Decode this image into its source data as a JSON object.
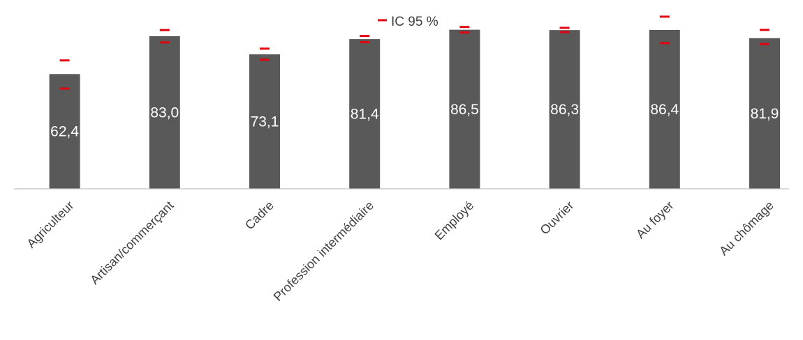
{
  "chart_data": {
    "type": "bar",
    "categories": [
      "Agriculteur",
      "Artisan/commerçant",
      "Cadre",
      "Profession intermédiaire",
      "Employé",
      "Ouvrier",
      "Au foyer",
      "Au chômage"
    ],
    "series": [
      {
        "values": [
          62.4,
          83.0,
          73.1,
          81.4,
          86.5,
          86.3,
          86.4,
          81.9
        ],
        "labels": [
          "62,4",
          "83,0",
          "73,1",
          "81,4",
          "86,5",
          "86,3",
          "86,4",
          "81,9"
        ]
      }
    ],
    "error_bars": {
      "name": "IC 95 %",
      "lower": [
        54.5,
        79.6,
        70.2,
        79.7,
        85.0,
        85.2,
        79.2,
        78.7
      ],
      "upper": [
        69.8,
        86.3,
        76.2,
        83.1,
        88.0,
        87.5,
        93.6,
        86.4
      ]
    },
    "legend": {
      "items": [
        "IC 95 %"
      ],
      "position": "top-center"
    },
    "ylim": [
      0,
      100
    ],
    "grid": false,
    "colors": {
      "bar": "#595959",
      "error": "#e3000f",
      "axis": "#c0c0c0",
      "label": "#404040",
      "bar_label": "#ffffff"
    }
  }
}
